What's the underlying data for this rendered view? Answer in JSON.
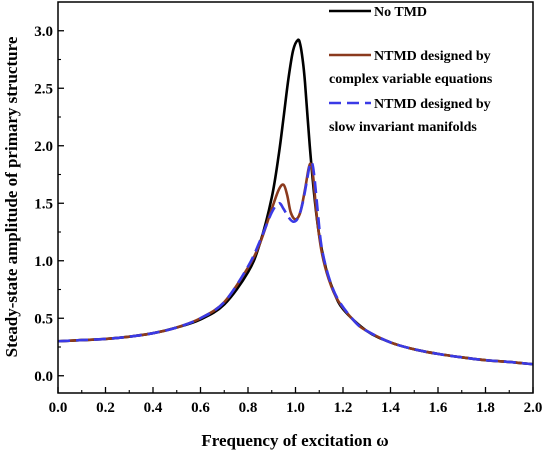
{
  "chart_data": {
    "type": "line",
    "title": "",
    "xlabel": "Frequency of excitation ω",
    "ylabel": "Steady-state amplitude of primary structure",
    "xlim": [
      0.0,
      2.0
    ],
    "ylim": [
      -0.15,
      3.25
    ],
    "x_ticks": [
      0.0,
      0.2,
      0.4,
      0.6,
      0.8,
      1.0,
      1.2,
      1.4,
      1.6,
      1.8,
      2.0
    ],
    "y_ticks": [
      0.0,
      0.5,
      1.0,
      1.5,
      2.0,
      2.5,
      3.0
    ],
    "x_tick_labels": [
      "0.0",
      "0.2",
      "0.4",
      "0.6",
      "0.8",
      "1.0",
      "1.2",
      "1.4",
      "1.6",
      "1.8",
      "2.0"
    ],
    "y_tick_labels": [
      "0.0",
      "0.5",
      "1.0",
      "1.5",
      "2.0",
      "2.5",
      "3.0"
    ],
    "grid": false,
    "legend_position": "top-right",
    "series": [
      {
        "name": "No TMD",
        "color": "#000000",
        "style": "solid",
        "x": [
          0.0,
          0.1,
          0.2,
          0.3,
          0.4,
          0.5,
          0.6,
          0.7,
          0.8,
          0.85,
          0.9,
          0.93,
          0.95,
          0.97,
          0.99,
          1.01,
          1.02,
          1.03,
          1.04,
          1.06,
          1.08,
          1.1,
          1.13,
          1.16,
          1.2,
          1.3,
          1.4,
          1.5,
          1.6,
          1.7,
          1.8,
          1.9,
          2.0
        ],
        "y": [
          0.3,
          0.31,
          0.32,
          0.34,
          0.37,
          0.42,
          0.49,
          0.62,
          0.9,
          1.15,
          1.55,
          1.93,
          2.25,
          2.58,
          2.83,
          2.92,
          2.88,
          2.75,
          2.55,
          2.0,
          1.55,
          1.22,
          0.92,
          0.74,
          0.58,
          0.39,
          0.29,
          0.23,
          0.19,
          0.16,
          0.135,
          0.12,
          0.1
        ]
      },
      {
        "name": "NTMD designed by complex variable equations",
        "color": "#8b3a1e",
        "style": "solid",
        "x": [
          0.0,
          0.1,
          0.2,
          0.3,
          0.4,
          0.5,
          0.6,
          0.7,
          0.8,
          0.85,
          0.9,
          0.93,
          0.95,
          0.965,
          0.98,
          1.0,
          1.02,
          1.04,
          1.055,
          1.065,
          1.075,
          1.09,
          1.11,
          1.14,
          1.18,
          1.25,
          1.3,
          1.4,
          1.5,
          1.6,
          1.7,
          1.8,
          1.9,
          2.0
        ],
        "y": [
          0.3,
          0.31,
          0.32,
          0.34,
          0.37,
          0.42,
          0.5,
          0.64,
          0.94,
          1.15,
          1.45,
          1.62,
          1.66,
          1.57,
          1.42,
          1.36,
          1.42,
          1.62,
          1.8,
          1.84,
          1.72,
          1.38,
          1.08,
          0.84,
          0.65,
          0.47,
          0.39,
          0.29,
          0.23,
          0.19,
          0.16,
          0.135,
          0.12,
          0.1
        ]
      },
      {
        "name": "NTMD designed by slow invariant manifolds",
        "color": "#3a3ae6",
        "style": "dashed",
        "x": [
          0.0,
          0.1,
          0.2,
          0.3,
          0.4,
          0.5,
          0.6,
          0.7,
          0.8,
          0.85,
          0.9,
          0.93,
          0.95,
          0.97,
          0.99,
          1.01,
          1.03,
          1.05,
          1.06,
          1.07,
          1.08,
          1.095,
          1.11,
          1.14,
          1.18,
          1.25,
          1.3,
          1.4,
          1.5,
          1.6,
          1.7,
          1.8,
          1.9,
          2.0
        ],
        "y": [
          0.3,
          0.31,
          0.32,
          0.34,
          0.37,
          0.42,
          0.5,
          0.64,
          0.95,
          1.17,
          1.42,
          1.5,
          1.45,
          1.38,
          1.34,
          1.37,
          1.5,
          1.72,
          1.83,
          1.85,
          1.72,
          1.4,
          1.12,
          0.86,
          0.66,
          0.47,
          0.39,
          0.29,
          0.23,
          0.19,
          0.16,
          0.135,
          0.12,
          0.1
        ]
      }
    ]
  }
}
